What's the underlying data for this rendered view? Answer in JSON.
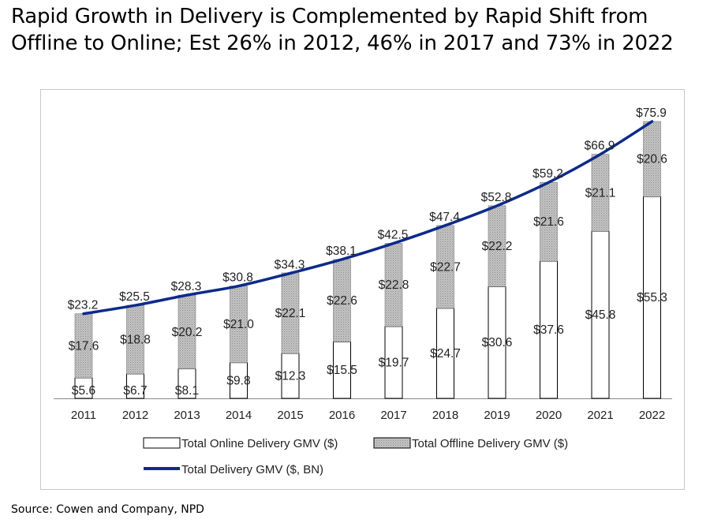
{
  "title": {
    "line1": "Rapid Growth in Delivery is Complemented by Rapid Shift from",
    "line2": "Offline to Online; Est 26% in 2012, 46% in 2017 and 73% in 2022"
  },
  "source": "Source: Cowen and Company, NPD",
  "colors": {
    "line": "#0d2a8a",
    "offline": "#b8b8b8",
    "online": "#ffffff"
  },
  "chart_data": {
    "type": "bar",
    "stacked": true,
    "categories": [
      "2011",
      "2012",
      "2013",
      "2014",
      "2015",
      "2016",
      "2017",
      "2018",
      "2019",
      "2020",
      "2021",
      "2022"
    ],
    "series": [
      {
        "name": "Total Online Delivery GMV ($)",
        "values": [
          5.6,
          6.7,
          8.1,
          9.8,
          12.3,
          15.5,
          19.7,
          24.7,
          30.6,
          37.6,
          45.8,
          55.3
        ],
        "labels": [
          "$5.6",
          "$6.7",
          "$8.1",
          "$9.8",
          "$12.3",
          "$15.5",
          "$19.7",
          "$24.7",
          "$30.6",
          "$37.6",
          "$45.8",
          "$55.3"
        ]
      },
      {
        "name": "Total Offline Delivery GMV ($)",
        "values": [
          17.6,
          18.8,
          20.2,
          21.0,
          22.1,
          22.6,
          22.8,
          22.7,
          22.2,
          21.6,
          21.1,
          20.6
        ],
        "labels": [
          "$17.6",
          "$18.8",
          "$20.2",
          "$21.0",
          "$22.1",
          "$22.6",
          "$22.8",
          "$22.7",
          "$22.2",
          "$21.6",
          "$21.1",
          "$20.6"
        ]
      },
      {
        "name": "Total Delivery GMV ($, BN)",
        "type": "line",
        "values": [
          23.2,
          25.5,
          28.3,
          30.8,
          34.3,
          38.1,
          42.5,
          47.4,
          52.8,
          59.2,
          66.9,
          75.9
        ],
        "labels": [
          "$23.2",
          "$25.5",
          "$28.3",
          "$30.8",
          "$34.3",
          "$38.1",
          "$42.5",
          "$47.4",
          "$52.8",
          "$59.2",
          "$66.9",
          "$75.9"
        ]
      }
    ],
    "ylim": [
      0,
      76
    ],
    "legend": "bottom",
    "grid": false
  }
}
